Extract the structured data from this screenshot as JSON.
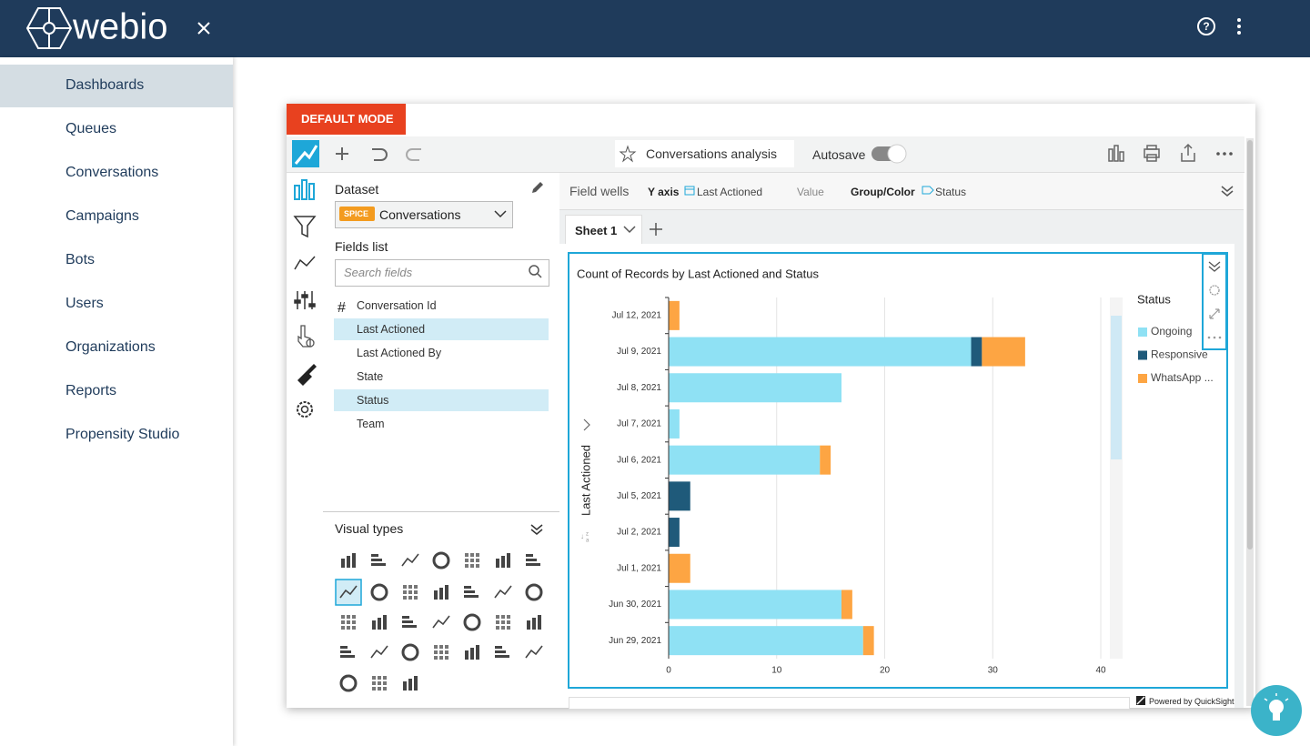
{
  "header": {
    "logo": "webio"
  },
  "nav": [
    "Dashboards",
    "Queues",
    "Conversations",
    "Campaigns",
    "Bots",
    "Users",
    "Organizations",
    "Reports",
    "Propensity Studio"
  ],
  "mode_badge": "DEFAULT MODE",
  "toolbar": {
    "analysis_name": "Conversations analysis",
    "autosave": "Autosave"
  },
  "dataset_panel": {
    "title": "Dataset",
    "badge": "SPICE",
    "dataset": "Conversations",
    "fields_title": "Fields list",
    "search_placeholder": "Search fields",
    "fields": [
      "Conversation Id",
      "Last Actioned",
      "Last Actioned By",
      "State",
      "Status",
      "Team"
    ],
    "visual_types": "Visual types"
  },
  "field_wells": {
    "title": "Field wells",
    "y_axis": "Y axis",
    "y_field": "Last Actioned",
    "value": "Value",
    "group": "Group/Color",
    "group_field": "Status"
  },
  "sheet_tab": "Sheet 1",
  "footer": "Powered by QuickSight",
  "chart_data": {
    "type": "bar",
    "orientation": "horizontal",
    "stacked": true,
    "title": "Count of Records by Last Actioned and Status",
    "y_label": "Last Actioned",
    "legend_title": "Status",
    "categories": [
      "Jul 12, 2021",
      "Jul 9, 2021",
      "Jul 8, 2021",
      "Jul 7, 2021",
      "Jul 6, 2021",
      "Jul 5, 2021",
      "Jul 2, 2021",
      "Jul 1, 2021",
      "Jun 30, 2021",
      "Jun 29, 2021"
    ],
    "series": [
      {
        "name": "Ongoing",
        "color": "#8fe1f4",
        "values": [
          0,
          28,
          16,
          1,
          14,
          0,
          0,
          0,
          16,
          18
        ]
      },
      {
        "name": "Responsive",
        "color": "#1f5a7a",
        "values": [
          0,
          1,
          0,
          0,
          0,
          2,
          1,
          0,
          0,
          0
        ]
      },
      {
        "name": "WhatsApp ...",
        "color": "#fda543",
        "values": [
          1,
          4,
          0,
          0,
          1,
          0,
          0,
          2,
          1,
          1
        ]
      }
    ],
    "xlim": [
      0,
      40
    ],
    "xticks": [
      0,
      10,
      20,
      30,
      40
    ],
    "grid": true
  }
}
